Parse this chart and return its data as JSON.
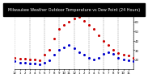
{
  "title": "Milwaukee Weather Outdoor Temperature vs Dew Point (24 Hours)",
  "title_fontsize": 3.5,
  "temp_color": "#cc0000",
  "dew_color": "#0000cc",
  "background_color": "#ffffff",
  "plot_bg_color": "#ffffff",
  "grid_color": "#888888",
  "ylabel_color": "#000000",
  "temp_x": [
    0,
    1,
    2,
    3,
    4,
    5,
    6,
    7,
    8,
    9,
    10,
    11,
    12,
    13,
    14,
    15,
    16,
    17,
    18,
    19,
    20,
    21,
    22,
    23,
    24
  ],
  "temp_y": [
    22,
    21,
    21,
    20,
    20,
    19,
    25,
    30,
    42,
    52,
    57,
    60,
    63,
    65,
    61,
    57,
    52,
    46,
    40,
    35,
    30,
    27,
    25,
    24,
    22
  ],
  "dew_x": [
    0,
    1,
    2,
    3,
    4,
    5,
    6,
    7,
    8,
    9,
    10,
    11,
    12,
    13,
    14,
    15,
    16,
    17,
    18,
    19,
    20,
    21,
    22,
    23,
    24
  ],
  "dew_y": [
    18,
    17,
    17,
    16,
    16,
    15,
    17,
    19,
    25,
    30,
    33,
    35,
    32,
    28,
    25,
    22,
    20,
    22,
    26,
    28,
    26,
    22,
    20,
    19,
    18
  ],
  "ylim": [
    10,
    70
  ],
  "ytick_values": [
    20,
    30,
    40,
    50,
    60,
    70
  ],
  "ytick_labels": [
    "20",
    "30",
    "40",
    "50",
    "60",
    "70"
  ],
  "xlim": [
    0,
    24
  ],
  "xticks": [
    0,
    1,
    2,
    3,
    4,
    5,
    6,
    7,
    8,
    9,
    10,
    11,
    12,
    13,
    14,
    15,
    16,
    17,
    18,
    19,
    20,
    21,
    22,
    23
  ],
  "xticklabels": [
    "12",
    "1",
    "2",
    "3",
    "4",
    "5",
    "6",
    "7",
    "8",
    "9",
    "10",
    "11",
    "12",
    "1",
    "2",
    "3",
    "4",
    "5",
    "6",
    "7",
    "8",
    "9",
    "10",
    "11"
  ],
  "vgrid_positions": [
    0,
    3,
    6,
    9,
    12,
    15,
    18,
    21,
    24
  ],
  "marker_size": 1.2,
  "tick_fontsize": 2.8,
  "title_color": "#000000",
  "title_bg_color": "#000000",
  "title_text_color": "#ffffff"
}
